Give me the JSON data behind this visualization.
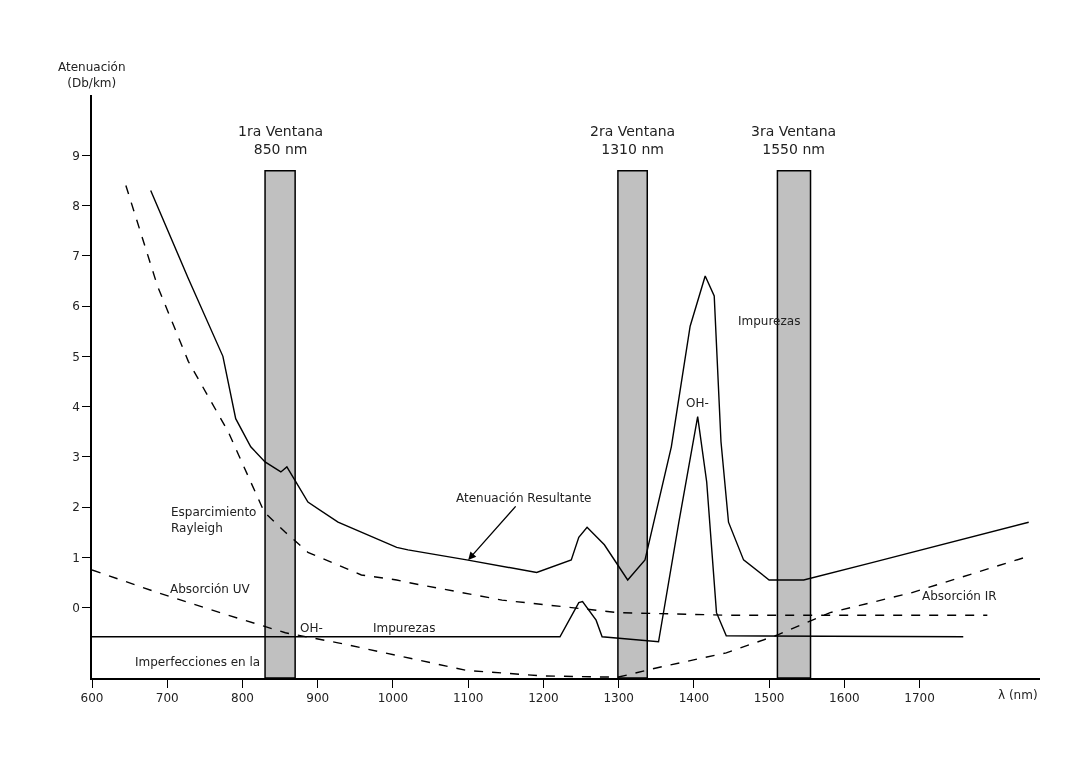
{
  "chart_data": {
    "type": "line",
    "xlabel": "λ (nm)",
    "ylabel": "Atenuación\n(Db/km)",
    "xlim": [
      600,
      1860
    ],
    "xticks": [
      600,
      700,
      800,
      900,
      1000,
      1100,
      1200,
      1300,
      1400,
      1500,
      1600,
      1700
    ],
    "ylim": [
      -1.4,
      10.2
    ],
    "yticks": [
      0,
      1,
      2,
      3,
      4,
      5,
      6,
      7,
      8,
      9
    ],
    "grid": false,
    "marker": "none",
    "series": [
      {
        "color": "#000000",
        "line_style": "solid",
        "x": [
          678,
          728,
          774,
          791,
          811,
          830,
          851,
          859,
          869,
          887,
          927,
          1005,
          1020,
          1098,
          1191,
          1237,
          1247,
          1258,
          1281,
          1312,
          1335,
          1370,
          1395,
          1415,
          1427,
          1436,
          1446,
          1466,
          1500,
          1546,
          1638,
          1845
        ],
        "values": [
          8.3,
          6.55,
          5.0,
          3.76,
          3.2,
          2.9,
          2.7,
          2.8,
          2.55,
          2.1,
          1.7,
          1.2,
          1.15,
          0.95,
          0.7,
          0.95,
          1.4,
          1.6,
          1.25,
          0.55,
          0.95,
          3.2,
          5.6,
          6.6,
          6.2,
          3.3,
          1.7,
          0.95,
          0.55,
          0.55,
          0.9,
          1.7
        ]
      },
      {
        "color": "#000000",
        "line_style": "dashed",
        "x": [
          645,
          687,
          728,
          781,
          829,
          857,
          887,
          958,
          1005,
          1020,
          1145,
          1300,
          1443,
          1790
        ],
        "values": [
          8.4,
          6.4,
          4.9,
          3.5,
          1.9,
          1.5,
          1.1,
          0.65,
          0.55,
          0.5,
          0.15,
          -0.1,
          -0.15,
          -0.15
        ]
      },
      {
        "color": "#000000",
        "line_style": "dashed",
        "x": [
          600,
          687,
          781,
          857,
          927,
          1005,
          1098,
          1201,
          1280,
          1300,
          1350,
          1443,
          1510,
          1581,
          1690,
          1840
        ],
        "values": [
          0.75,
          0.3,
          -0.15,
          -0.5,
          -0.7,
          -0.95,
          -1.25,
          -1.36,
          -1.38,
          -1.38,
          -1.2,
          -0.9,
          -0.55,
          -0.1,
          0.3,
          1.0
        ]
      },
      {
        "color": "#000000",
        "line_style": "solid",
        "x": [
          600,
          1222,
          1247,
          1252,
          1270,
          1278,
          1353,
          1380,
          1405,
          1417,
          1430,
          1443,
          1758
        ],
        "values": [
          -0.58,
          -0.58,
          0.1,
          0.12,
          -0.25,
          -0.58,
          -0.68,
          1.7,
          3.8,
          2.5,
          -0.1,
          -0.56,
          -0.58
        ]
      }
    ],
    "bands": [
      {
        "axis": "x",
        "from": 830,
        "to": 870,
        "label": "1ra Ventana\n850 nm",
        "color": "#c0c0c0"
      },
      {
        "axis": "x",
        "from": 1299,
        "to": 1338,
        "label": "2ra Ventana\n1310 nm",
        "color": "#c0c0c0"
      },
      {
        "axis": "x",
        "from": 1511,
        "to": 1555,
        "label": "3ra Ventana\n1550 nm",
        "color": "#c0c0c0"
      }
    ],
    "annotations": [
      {
        "text": "Atenuación Resultante",
        "x": 1100,
        "y": 0.95
      },
      {
        "text": "Esparcimiento\nRayleigh",
        "x": 829,
        "y": 1.9
      },
      {
        "text": "Absorción UV",
        "x": 687,
        "y": 0.3
      },
      {
        "text": "Impurezas",
        "x": 1427,
        "y": 6.2
      },
      {
        "text": "OH-",
        "x": 1405,
        "y": 3.8
      },
      {
        "text": "Absorción IR",
        "x": 1690,
        "y": 0.3
      },
      {
        "text": "OH-",
        "x": 892,
        "y": -0.58
      },
      {
        "text": "Impurezas",
        "x": 1015,
        "y": -0.58
      },
      {
        "text": "Imperfecciones en la",
        "x": 740,
        "y": -0.58
      }
    ]
  }
}
